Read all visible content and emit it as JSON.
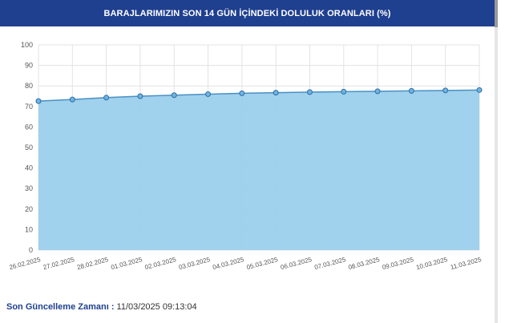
{
  "chart_data": {
    "type": "area",
    "title": "BARAJLARIMIZIN SON 14 GÜN İÇİNDEKİ DOLULUK ORANLARI (%)",
    "xlabel": "",
    "ylabel": "",
    "ylim": [
      0,
      100
    ],
    "yticks": [
      "100",
      "90",
      "80",
      "70",
      "60",
      "50",
      "40",
      "30",
      "20",
      "10",
      "0"
    ],
    "grid": true,
    "categories": [
      "26.02.2025",
      "27.02.2025",
      "28.02.2025",
      "01.03.2025",
      "02.03.2025",
      "03.03.2025",
      "04.03.2025",
      "05.03.2025",
      "06.03.2025",
      "07.03.2025",
      "08.03.2025",
      "09.03.2025",
      "10.03.2025",
      "11.03.2025"
    ],
    "series": [
      {
        "values": [
          72.6,
          73.4,
          74.3,
          75.0,
          75.5,
          76.0,
          76.4,
          76.7,
          77.0,
          77.2,
          77.4,
          77.6,
          77.8,
          78.0
        ]
      }
    ],
    "colors": {
      "fill": "#9bcfec",
      "line": "#4a90c2",
      "point": "#2e6da4",
      "grid": "#e3e3e3"
    }
  },
  "footer": {
    "label": "Son Güncelleme Zamanı :",
    "value": "11/03/2025 09:13:04"
  }
}
